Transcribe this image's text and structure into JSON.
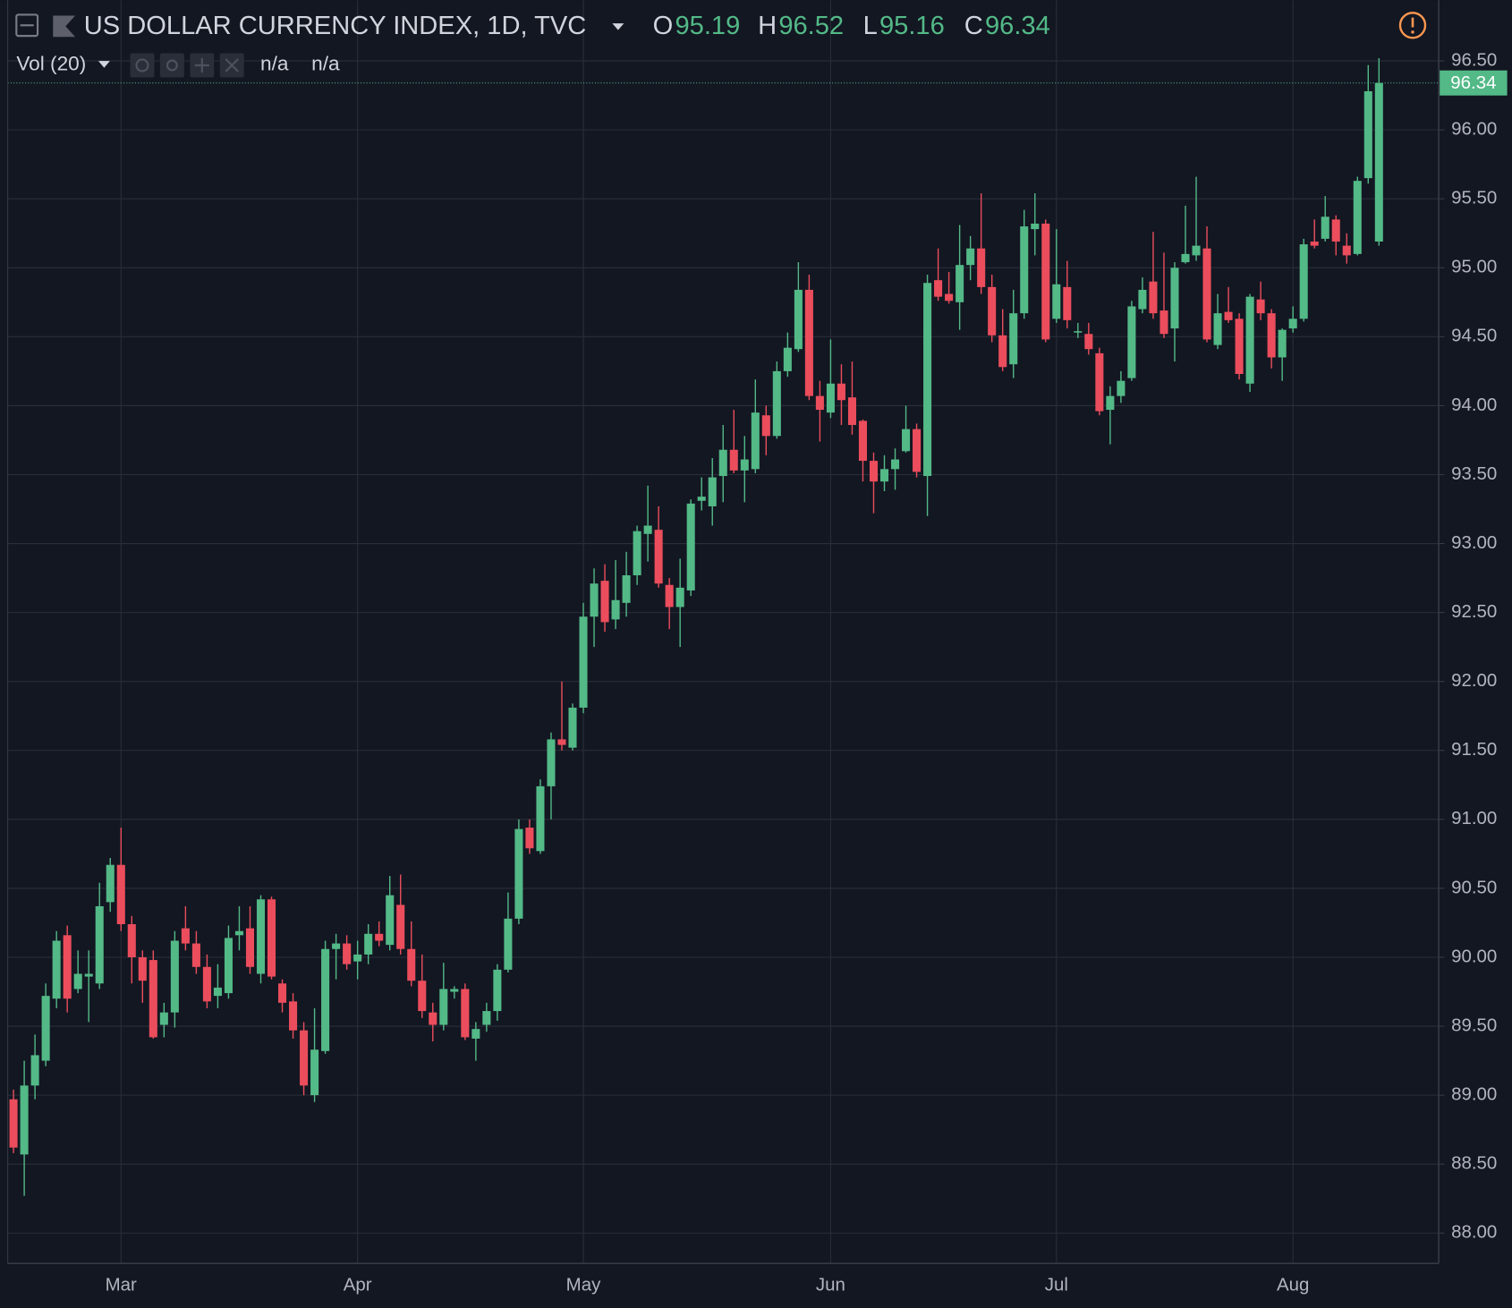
{
  "chart_data": {
    "type": "candlestick",
    "title": "US DOLLAR CURRENCY INDEX, 1D, TVC",
    "ohlc_labels": [
      "O",
      "H",
      "L",
      "C"
    ],
    "indicator": "Vol (20)",
    "indicator_values": [
      "n/a",
      "n/a"
    ],
    "categories": [
      null,
      null,
      null,
      null,
      null,
      null,
      null,
      null,
      null,
      null,
      "Mar",
      null,
      null,
      null,
      null,
      null,
      null,
      null,
      null,
      null,
      null,
      null,
      null,
      null,
      null,
      null,
      null,
      null,
      null,
      null,
      null,
      null,
      "Apr",
      null,
      null,
      null,
      null,
      null,
      null,
      null,
      null,
      null,
      null,
      null,
      null,
      null,
      null,
      null,
      null,
      null,
      null,
      null,
      null,
      "May",
      null,
      null,
      null,
      null,
      null,
      null,
      null,
      null,
      null,
      null,
      null,
      null,
      null,
      null,
      null,
      null,
      null,
      null,
      null,
      null,
      null,
      null,
      "Jun",
      null,
      null,
      null,
      null,
      null,
      null,
      null,
      null,
      null,
      null,
      null,
      null,
      null,
      null,
      null,
      null,
      null,
      null,
      null,
      null,
      "Jul",
      null,
      null,
      null,
      null,
      null,
      null,
      null,
      null,
      null,
      null,
      null,
      null,
      null,
      null,
      null,
      null,
      null,
      null,
      null,
      null,
      null,
      "Aug",
      null,
      null,
      null,
      null,
      null,
      null,
      null,
      null
    ],
    "series": [
      {
        "up_color": "#53b987",
        "down_color": "#eb4d5c",
        "open": [
          88.97,
          88.57,
          89.07,
          89.25,
          89.7,
          90.16,
          89.77,
          89.86,
          89.81,
          90.4,
          90.67,
          90.24,
          90.0,
          89.98,
          89.51,
          89.6,
          90.21,
          90.1,
          89.93,
          89.72,
          89.74,
          90.16,
          90.21,
          89.88,
          90.42,
          89.81,
          89.68,
          89.47,
          89.0,
          89.32,
          90.06,
          90.1,
          89.97,
          90.02,
          90.17,
          90.09,
          90.38,
          90.06,
          89.83,
          89.6,
          89.51,
          89.75,
          89.77,
          89.41,
          89.51,
          89.61,
          89.91,
          90.28,
          90.94,
          90.77,
          91.24,
          91.58,
          91.52,
          91.81,
          92.47,
          92.73,
          92.45,
          92.57,
          92.77,
          93.07,
          93.1,
          92.7,
          92.54,
          92.66,
          93.31,
          93.27,
          93.49,
          93.68,
          93.53,
          93.54,
          93.93,
          93.78,
          94.25,
          94.41,
          94.84,
          94.07,
          93.95,
          94.16,
          94.06,
          93.89,
          93.6,
          93.45,
          93.54,
          93.67,
          93.83,
          93.49,
          94.91,
          94.81,
          94.75,
          95.02,
          95.14,
          94.86,
          94.51,
          94.3,
          94.67,
          95.28,
          95.32,
          94.63,
          94.86,
          94.53,
          94.52,
          94.38,
          93.97,
          94.07,
          94.2,
          94.7,
          94.9,
          94.69,
          94.56,
          95.04,
          95.09,
          95.14,
          94.44,
          94.68,
          94.63,
          94.16,
          94.77,
          94.67,
          94.35,
          94.56,
          94.63,
          95.19,
          95.21,
          95.35,
          95.16,
          95.1,
          95.65,
          95.19
        ],
        "high": [
          89.04,
          89.25,
          89.44,
          89.81,
          90.19,
          90.23,
          90.05,
          90.05,
          90.54,
          90.72,
          90.94,
          90.3,
          90.05,
          90.05,
          89.67,
          90.19,
          90.37,
          90.19,
          90.02,
          89.95,
          90.23,
          90.37,
          90.37,
          90.45,
          90.44,
          89.84,
          89.74,
          89.53,
          89.63,
          90.12,
          90.17,
          90.16,
          90.12,
          90.24,
          90.26,
          90.59,
          90.6,
          90.26,
          90.02,
          89.67,
          89.96,
          89.79,
          89.81,
          89.53,
          89.67,
          89.95,
          90.47,
          91.0,
          91.0,
          91.29,
          91.63,
          92.0,
          91.84,
          92.57,
          92.82,
          92.85,
          92.88,
          92.94,
          93.13,
          93.42,
          93.27,
          92.75,
          92.89,
          93.32,
          93.48,
          93.62,
          93.86,
          93.97,
          93.78,
          94.19,
          94.0,
          94.32,
          94.53,
          95.04,
          94.95,
          94.18,
          94.48,
          94.3,
          94.32,
          93.9,
          93.66,
          93.64,
          93.69,
          94.0,
          93.87,
          94.95,
          95.14,
          94.97,
          95.31,
          95.23,
          95.54,
          94.95,
          94.7,
          94.84,
          95.42,
          95.54,
          95.35,
          95.28,
          95.05,
          94.6,
          94.6,
          94.42,
          94.14,
          94.25,
          94.76,
          94.93,
          95.26,
          95.11,
          95.04,
          95.45,
          95.66,
          95.3,
          94.81,
          94.86,
          94.67,
          94.81,
          94.9,
          94.7,
          94.56,
          94.72,
          95.21,
          95.35,
          95.52,
          95.38,
          95.25,
          95.66,
          96.47,
          96.52
        ],
        "low": [
          88.58,
          88.27,
          88.97,
          89.21,
          89.63,
          89.6,
          89.74,
          89.53,
          89.77,
          90.33,
          90.19,
          89.81,
          89.67,
          89.41,
          89.42,
          89.49,
          90.05,
          89.88,
          89.63,
          89.63,
          89.7,
          90.05,
          89.88,
          89.81,
          89.84,
          89.6,
          89.41,
          89.0,
          88.95,
          89.3,
          89.84,
          89.91,
          89.84,
          89.95,
          90.08,
          90.05,
          90.02,
          89.79,
          89.56,
          89.39,
          89.47,
          89.7,
          89.4,
          89.25,
          89.46,
          89.54,
          89.89,
          90.24,
          90.75,
          90.75,
          91.0,
          91.5,
          91.5,
          91.77,
          92.25,
          92.36,
          92.38,
          92.47,
          92.7,
          92.87,
          92.68,
          92.38,
          92.25,
          92.62,
          93.24,
          93.13,
          93.3,
          93.51,
          93.3,
          93.51,
          93.64,
          93.76,
          94.21,
          94.39,
          94.04,
          93.74,
          93.91,
          93.86,
          93.79,
          93.45,
          93.22,
          93.38,
          93.39,
          93.66,
          93.48,
          93.2,
          94.76,
          94.74,
          94.55,
          94.91,
          94.81,
          94.46,
          94.25,
          94.2,
          94.63,
          95.09,
          94.46,
          94.6,
          94.56,
          94.49,
          94.37,
          93.93,
          93.72,
          94.02,
          94.18,
          94.67,
          94.63,
          94.49,
          94.32,
          95.03,
          95.05,
          94.46,
          94.41,
          94.6,
          94.19,
          94.1,
          94.62,
          94.27,
          94.18,
          94.53,
          94.61,
          95.14,
          95.19,
          95.09,
          95.03,
          95.09,
          95.61,
          95.16
        ],
        "close": [
          88.62,
          89.07,
          89.29,
          89.72,
          90.12,
          89.7,
          89.88,
          89.88,
          90.37,
          90.67,
          90.24,
          90.0,
          89.83,
          89.42,
          89.6,
          90.12,
          90.1,
          89.93,
          89.68,
          89.78,
          90.14,
          90.19,
          89.93,
          90.42,
          89.86,
          89.67,
          89.47,
          89.07,
          89.33,
          90.06,
          90.1,
          89.95,
          90.02,
          90.17,
          90.12,
          90.45,
          90.06,
          89.83,
          89.61,
          89.51,
          89.77,
          89.77,
          89.42,
          89.48,
          89.61,
          89.91,
          90.28,
          90.93,
          90.79,
          91.24,
          91.58,
          91.54,
          91.81,
          92.47,
          92.71,
          92.43,
          92.59,
          92.77,
          93.09,
          93.13,
          92.71,
          92.54,
          92.68,
          93.29,
          93.34,
          93.48,
          93.68,
          93.53,
          93.61,
          93.95,
          93.78,
          94.25,
          94.42,
          94.84,
          94.07,
          93.97,
          94.16,
          94.04,
          93.86,
          93.6,
          93.45,
          93.54,
          93.61,
          93.83,
          93.52,
          94.89,
          94.79,
          94.76,
          95.02,
          95.14,
          94.86,
          94.51,
          94.28,
          94.67,
          95.3,
          95.32,
          94.48,
          94.88,
          94.62,
          94.54,
          94.41,
          93.96,
          94.07,
          94.18,
          94.72,
          94.84,
          94.67,
          94.52,
          95.0,
          95.1,
          95.16,
          94.48,
          94.67,
          94.62,
          94.23,
          94.79,
          94.67,
          94.35,
          94.55,
          94.63,
          95.17,
          95.16,
          95.37,
          95.19,
          95.09,
          95.63,
          96.28,
          96.34
        ]
      }
    ],
    "ylim": [
      87.78,
      96.94
    ],
    "yticks": [
      {
        "value": 88,
        "label": "88.00"
      },
      {
        "value": 88.5,
        "label": "88.50"
      },
      {
        "value": 89,
        "label": "89.00"
      },
      {
        "value": 89.5,
        "label": "89.50"
      },
      {
        "value": 90,
        "label": "90.00"
      },
      {
        "value": 90.5,
        "label": "90.50"
      },
      {
        "value": 91,
        "label": "91.00"
      },
      {
        "value": 91.5,
        "label": "91.50"
      },
      {
        "value": 92,
        "label": "92.00"
      },
      {
        "value": 92.5,
        "label": "92.50"
      },
      {
        "value": 93,
        "label": "93.00"
      },
      {
        "value": 93.5,
        "label": "93.50"
      },
      {
        "value": 94,
        "label": "94.00"
      },
      {
        "value": 94.5,
        "label": "94.50"
      },
      {
        "value": 95,
        "label": "95.00"
      },
      {
        "value": 95.5,
        "label": "95.50"
      },
      {
        "value": 96,
        "label": "96.00"
      },
      {
        "value": 96.5,
        "label": "96.50"
      }
    ],
    "grid": true
  }
}
